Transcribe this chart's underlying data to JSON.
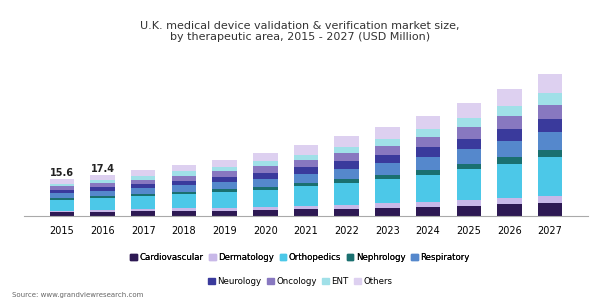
{
  "title": "U.K. medical device validation & verification market size,\nby therapeutic area, 2015 - 2027 (USD Million)",
  "years": [
    2015,
    2016,
    2017,
    2018,
    2019,
    2020,
    2021,
    2022,
    2023,
    2024,
    2025,
    2026,
    2027
  ],
  "source": "Source: www.grandviewresearch.com",
  "labels_2015_2016": [
    "15.6",
    "17.4"
  ],
  "categories": [
    "Cardiovascular",
    "Dermatology",
    "Orthopedics",
    "Nephrology",
    "Respiratory",
    "Neurology",
    "Oncology",
    "ENT",
    "Others"
  ],
  "colors": [
    "#2d1953",
    "#c8b8e8",
    "#4cc8e8",
    "#1a7070",
    "#5588cc",
    "#3a3a9c",
    "#8878c0",
    "#a0e0e8",
    "#ddd0f0"
  ],
  "data": {
    "Cardiovascular": [
      1.5,
      1.7,
      1.9,
      2.1,
      2.3,
      2.5,
      2.8,
      3.1,
      3.5,
      3.9,
      4.4,
      5.0,
      5.6
    ],
    "Dermatology": [
      0.8,
      0.9,
      1.0,
      1.1,
      1.2,
      1.3,
      1.5,
      1.7,
      1.9,
      2.1,
      2.4,
      2.7,
      3.0
    ],
    "Orthopedics": [
      4.5,
      5.0,
      5.4,
      6.0,
      6.6,
      7.3,
      8.1,
      9.1,
      10.2,
      11.4,
      12.8,
      14.3,
      16.0
    ],
    "Nephrology": [
      0.7,
      0.8,
      0.9,
      1.0,
      1.1,
      1.2,
      1.4,
      1.6,
      1.8,
      2.0,
      2.3,
      2.6,
      2.9
    ],
    "Respiratory": [
      2.0,
      2.2,
      2.4,
      2.7,
      3.0,
      3.4,
      3.8,
      4.3,
      4.8,
      5.4,
      6.1,
      6.8,
      7.6
    ],
    "Neurology": [
      1.4,
      1.6,
      1.8,
      2.0,
      2.2,
      2.5,
      2.8,
      3.2,
      3.6,
      4.0,
      4.5,
      5.1,
      5.7
    ],
    "Oncology": [
      1.5,
      1.7,
      1.9,
      2.1,
      2.3,
      2.6,
      2.9,
      3.3,
      3.7,
      4.2,
      4.7,
      5.3,
      5.9
    ],
    "ENT": [
      1.2,
      1.3,
      1.5,
      1.7,
      1.9,
      2.1,
      2.4,
      2.7,
      3.0,
      3.4,
      3.8,
      4.3,
      4.8
    ],
    "Others": [
      2.0,
      2.2,
      2.4,
      2.7,
      3.1,
      3.5,
      3.9,
      4.4,
      5.0,
      5.6,
      6.3,
      7.0,
      7.9
    ]
  },
  "background_color": "#ffffff",
  "title_color": "#333333",
  "bar_width": 0.6,
  "ylim": [
    0,
    68
  ],
  "title_fontsize": 8.0,
  "legend_fontsize": 6.2,
  "tick_fontsize": 7.0,
  "header_color": "#f0eef8"
}
